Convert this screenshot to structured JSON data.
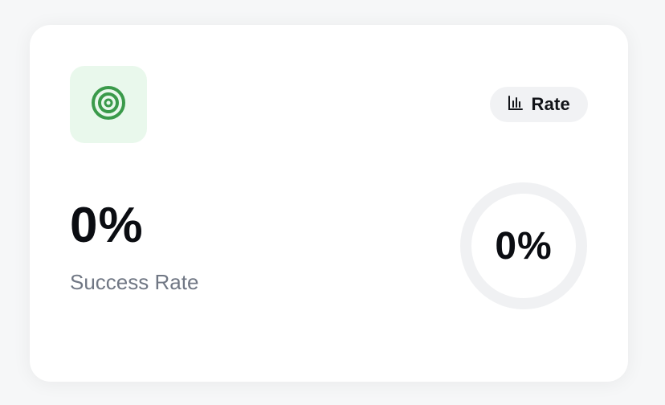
{
  "card": {
    "icon": "target-icon",
    "accent_color": "#3a9a4a",
    "icon_bg_color": "#e9f8ec",
    "chip": {
      "icon": "bar-chart-icon",
      "label": "Rate"
    },
    "value": "0%",
    "caption": "Success Rate",
    "ring": {
      "label": "0%",
      "progress": 0,
      "track_color": "#f0f1f3",
      "progress_color": "#3a9a4a"
    }
  }
}
